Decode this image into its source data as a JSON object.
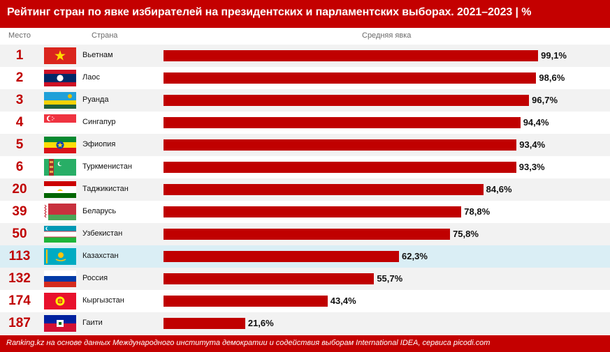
{
  "title": "Рейтинг стран по явке избирателей на президентских и парламентских выборах. 2021–2023 | %",
  "columns": {
    "rank": "Место",
    "country": "Страна",
    "value": "Средняя явка"
  },
  "footer": "Ranking.kz на основе данных Международного института демократии и содействия выборам International IDEA, сервиса picodi.com",
  "colors": {
    "bar": "#c00000",
    "header": "#c40000",
    "highlight_row": "#daeef5"
  },
  "chart_data": {
    "type": "bar",
    "orientation": "horizontal",
    "categories": [
      "Вьетнам",
      "Лаос",
      "Руанда",
      "Сингапур",
      "Эфиопия",
      "Туркменистан",
      "Таджикистан",
      "Беларусь",
      "Узбекистан",
      "Казахстан",
      "Россия",
      "Кыргызстан",
      "Гаити"
    ],
    "values": [
      99.1,
      98.6,
      96.7,
      94.4,
      93.4,
      93.3,
      84.6,
      78.8,
      75.8,
      62.3,
      55.7,
      43.4,
      21.6
    ],
    "value_labels": [
      "99,1%",
      "98,6%",
      "96,7%",
      "94,4%",
      "93,4%",
      "93,3%",
      "84,6%",
      "78,8%",
      "75,8%",
      "62,3%",
      "55,7%",
      "43,4%",
      "21,6%"
    ],
    "ranks": [
      "1",
      "2",
      "3",
      "4",
      "5",
      "6",
      "20",
      "39",
      "50",
      "113",
      "132",
      "174",
      "187"
    ],
    "flags": [
      "vietnam-flag",
      "laos-flag",
      "rwanda-flag",
      "singapore-flag",
      "ethiopia-flag",
      "turkmenistan-flag",
      "tajikistan-flag",
      "belarus-flag",
      "uzbekistan-flag",
      "kazakhstan-flag",
      "russia-flag",
      "kyrgyzstan-flag",
      "haiti-flag"
    ],
    "highlighted": "Казахстан",
    "xlim": [
      0,
      100
    ]
  }
}
